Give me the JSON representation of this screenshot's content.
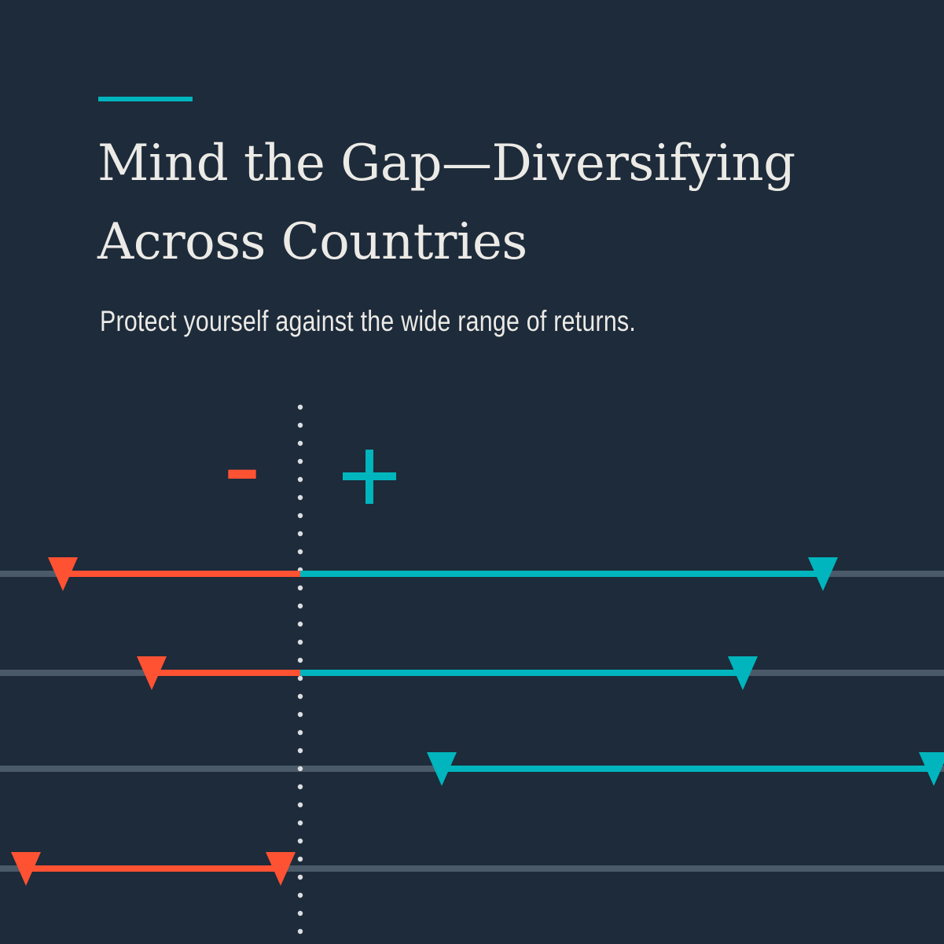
{
  "header": {
    "title_line1": "Mind the Gap—Diversifying",
    "title_line2": "Across Countries",
    "subtitle": "Protect yourself against the wide range of returns."
  },
  "legend": {
    "negative_symbol": "–",
    "positive_symbol": "+"
  },
  "colors": {
    "background": "#1d2b3a",
    "negative": "#ff5233",
    "positive": "#00b5bd",
    "track": "#4a5a68",
    "zero_line": "#dcdde0",
    "text": "#eceae6"
  }
}
